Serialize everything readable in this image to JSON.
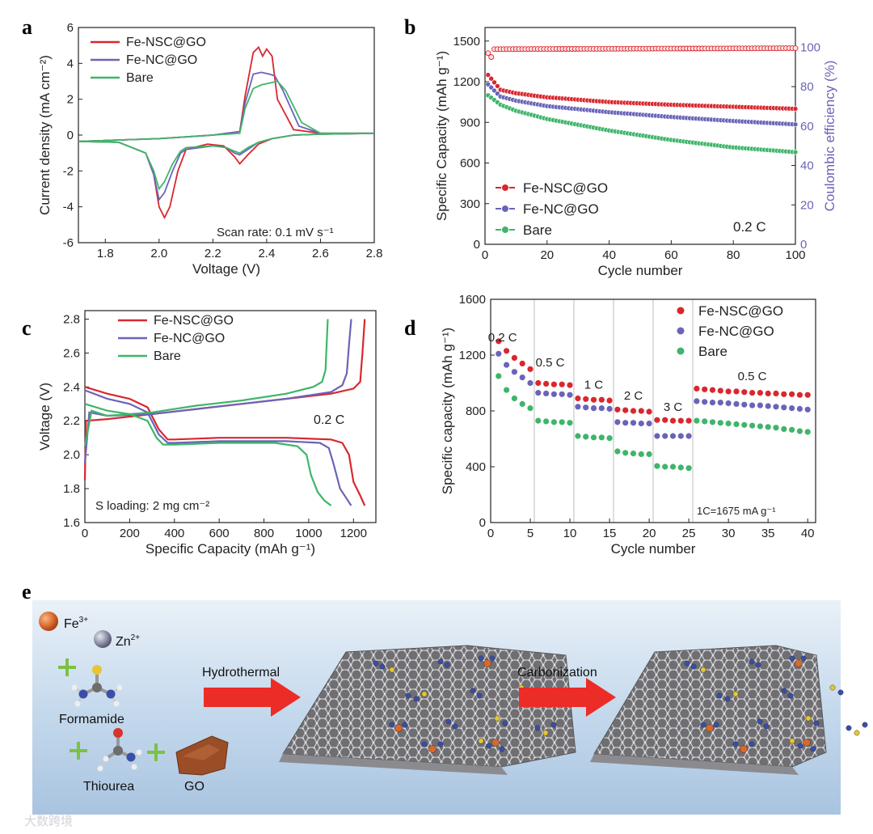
{
  "colors": {
    "nsc": "#d9272e",
    "nc": "#6a64b8",
    "bare": "#3fb56a"
  },
  "chart_data": [
    {
      "id": "a",
      "type": "line",
      "letter": "a",
      "xlabel": "Voltage (V)",
      "ylabel": "Current density (mA cm⁻²)",
      "xlim": [
        1.7,
        2.8
      ],
      "ylim": [
        -6,
        6
      ],
      "xticks": [
        1.8,
        2.0,
        2.2,
        2.4,
        2.6,
        2.8
      ],
      "yticks": [
        -6,
        -4,
        -2,
        0,
        2,
        4,
        6
      ],
      "annotation": "Scan rate: 0.1 mV s⁻¹",
      "legend": [
        "Fe-NSC@GO",
        "Fe-NC@GO",
        "Bare"
      ],
      "series": [
        {
          "name": "Fe-NSC@GO",
          "color": "nsc",
          "x": [
            1.7,
            1.85,
            1.95,
            1.98,
            2.0,
            2.02,
            2.04,
            2.07,
            2.1,
            2.18,
            2.24,
            2.28,
            2.3,
            2.33,
            2.37,
            2.42,
            2.5,
            2.6,
            2.8,
            2.6,
            2.5,
            2.44,
            2.42,
            2.4,
            2.385,
            2.37,
            2.35,
            2.32,
            2.3,
            2.2,
            2.0,
            1.7
          ],
          "y": [
            -0.35,
            -0.4,
            -1.0,
            -2.2,
            -4.0,
            -4.6,
            -4.0,
            -2.0,
            -0.8,
            -0.5,
            -0.6,
            -1.2,
            -1.6,
            -1.1,
            -0.5,
            -0.2,
            0.0,
            0.05,
            0.1,
            0.1,
            0.3,
            2.0,
            4.4,
            4.8,
            4.4,
            4.9,
            4.6,
            2.2,
            0.2,
            0.0,
            -0.2,
            -0.35
          ]
        },
        {
          "name": "Fe-NC@GO",
          "color": "nc",
          "x": [
            1.7,
            1.85,
            1.95,
            1.98,
            2.0,
            2.02,
            2.05,
            2.08,
            2.1,
            2.2,
            2.25,
            2.28,
            2.3,
            2.33,
            2.37,
            2.42,
            2.5,
            2.6,
            2.8,
            2.6,
            2.52,
            2.46,
            2.43,
            2.41,
            2.38,
            2.35,
            2.32,
            2.3,
            2.2,
            2.0,
            1.7
          ],
          "y": [
            -0.35,
            -0.4,
            -1.0,
            -2.2,
            -3.6,
            -3.2,
            -2.0,
            -1.0,
            -0.8,
            -0.6,
            -0.7,
            -1.0,
            -1.1,
            -0.8,
            -0.4,
            -0.2,
            0.0,
            0.05,
            0.1,
            0.1,
            0.5,
            2.5,
            3.3,
            3.4,
            3.5,
            3.4,
            1.8,
            0.2,
            0.0,
            -0.2,
            -0.35
          ]
        },
        {
          "name": "Bare",
          "color": "bare",
          "x": [
            1.7,
            1.85,
            1.95,
            1.98,
            2.0,
            2.02,
            2.05,
            2.08,
            2.1,
            2.2,
            2.25,
            2.28,
            2.3,
            2.33,
            2.37,
            2.42,
            2.5,
            2.6,
            2.8,
            2.6,
            2.53,
            2.47,
            2.44,
            2.41,
            2.38,
            2.35,
            2.32,
            2.3,
            2.2,
            2.0,
            1.7
          ],
          "y": [
            -0.35,
            -0.4,
            -1.0,
            -2.0,
            -3.0,
            -2.6,
            -1.6,
            -0.9,
            -0.7,
            -0.6,
            -0.7,
            -0.9,
            -1.0,
            -0.7,
            -0.4,
            -0.2,
            0.0,
            0.05,
            0.1,
            0.1,
            0.7,
            2.5,
            3.0,
            2.9,
            2.8,
            2.6,
            1.5,
            0.1,
            0.0,
            -0.2,
            -0.35
          ]
        }
      ]
    },
    {
      "id": "b",
      "type": "scatter",
      "letter": "b",
      "xlabel": "Cycle number",
      "ylabel": "Specific Capacity (mAh g⁻¹)",
      "ylabel2": "Coulombic efficiency (%)",
      "xlim": [
        0,
        100
      ],
      "ylim": [
        0,
        1600
      ],
      "y2lim": [
        0,
        110
      ],
      "xticks": [
        0,
        20,
        40,
        60,
        80,
        100
      ],
      "yticks": [
        0,
        300,
        600,
        900,
        1200,
        1500
      ],
      "y2ticks": [
        0,
        20,
        40,
        60,
        80,
        100
      ],
      "annotation": "0.2 C",
      "legend": [
        "Fe-NSC@GO",
        "Fe-NC@GO",
        "Bare"
      ],
      "capacity": [
        {
          "name": "Fe-NSC@GO",
          "color": "nsc",
          "start": 1250,
          "x": [
            1,
            5,
            10,
            20,
            40,
            60,
            80,
            100
          ],
          "y": [
            1250,
            1140,
            1115,
            1085,
            1050,
            1030,
            1015,
            1000
          ]
        },
        {
          "name": "Fe-NC@GO",
          "color": "nc",
          "start": 1180,
          "x": [
            1,
            5,
            10,
            20,
            40,
            60,
            80,
            100
          ],
          "y": [
            1180,
            1090,
            1060,
            1020,
            975,
            940,
            910,
            885
          ]
        },
        {
          "name": "Bare",
          "color": "bare",
          "start": 1100,
          "x": [
            1,
            5,
            10,
            20,
            40,
            60,
            80,
            100
          ],
          "y": [
            1100,
            1030,
            985,
            925,
            840,
            770,
            715,
            680
          ]
        }
      ],
      "efficiency": {
        "color": "nsc",
        "x": [
          1,
          2,
          3,
          100
        ],
        "y": [
          97,
          95,
          99,
          99.5
        ]
      }
    },
    {
      "id": "c",
      "type": "line",
      "letter": "c",
      "xlabel": "Specific Capacity (mAh g⁻¹)",
      "ylabel": "Voltage (V)",
      "xlim": [
        0,
        1300
      ],
      "ylim": [
        1.6,
        2.85
      ],
      "xticks": [
        0,
        200,
        400,
        600,
        800,
        1000,
        1200
      ],
      "yticks": [
        1.6,
        1.8,
        2.0,
        2.2,
        2.4,
        2.6,
        2.8
      ],
      "annotation": "0.2 C",
      "annotation2": "S loading: 2 mg cm⁻²",
      "legend": [
        "Fe-NSC@GO",
        "Fe-NC@GO",
        "Bare"
      ],
      "series": [
        {
          "name": "Fe-NSC@GO",
          "color": "nsc",
          "discharge": {
            "x": [
              0,
              100,
              200,
              280,
              330,
              370,
              400,
              600,
              900,
              1100,
              1150,
              1180,
              1200,
              1230,
              1250
            ],
            "y": [
              2.4,
              2.36,
              2.33,
              2.28,
              2.15,
              2.09,
              2.09,
              2.1,
              2.1,
              2.09,
              2.07,
              2.0,
              1.84,
              1.76,
              1.7
            ]
          },
          "charge": {
            "x": [
              0,
              5,
              100,
              300,
              500,
              700,
              900,
              1100,
              1200,
              1230,
              1240,
              1250
            ],
            "y": [
              1.85,
              2.2,
              2.21,
              2.24,
              2.27,
              2.3,
              2.33,
              2.36,
              2.39,
              2.43,
              2.6,
              2.8
            ]
          }
        },
        {
          "name": "Fe-NC@GO",
          "color": "nc",
          "discharge": {
            "x": [
              0,
              100,
              200,
              280,
              330,
              370,
              400,
              600,
              900,
              1050,
              1090,
              1110,
              1140,
              1170,
              1190
            ],
            "y": [
              2.38,
              2.33,
              2.3,
              2.25,
              2.12,
              2.07,
              2.07,
              2.08,
              2.08,
              2.07,
              2.04,
              1.95,
              1.8,
              1.74,
              1.7
            ]
          },
          "charge": {
            "x": [
              0,
              20,
              100,
              300,
              500,
              700,
              900,
              1100,
              1150,
              1170,
              1180,
              1190
            ],
            "y": [
              1.95,
              2.25,
              2.23,
              2.24,
              2.27,
              2.3,
              2.33,
              2.37,
              2.41,
              2.48,
              2.65,
              2.8
            ]
          }
        },
        {
          "name": "Bare",
          "color": "bare",
          "discharge": {
            "x": [
              0,
              100,
              200,
              280,
              320,
              350,
              400,
              600,
              850,
              950,
              990,
              1010,
              1040,
              1070,
              1100
            ],
            "y": [
              2.3,
              2.26,
              2.24,
              2.2,
              2.1,
              2.06,
              2.06,
              2.07,
              2.07,
              2.05,
              2.0,
              1.88,
              1.78,
              1.73,
              1.7
            ]
          },
          "charge": {
            "x": [
              0,
              30,
              100,
              300,
              500,
              700,
              900,
              1020,
              1060,
              1075,
              1080,
              1085
            ],
            "y": [
              2.05,
              2.26,
              2.23,
              2.25,
              2.29,
              2.32,
              2.36,
              2.4,
              2.43,
              2.5,
              2.65,
              2.8
            ]
          }
        }
      ]
    },
    {
      "id": "d",
      "type": "scatter",
      "letter": "d",
      "xlabel": "Cycle number",
      "ylabel": "Specific capacity (mAh g⁻¹)",
      "xlim": [
        0,
        41
      ],
      "ylim": [
        0,
        1600
      ],
      "xticks": [
        0,
        5,
        10,
        15,
        20,
        25,
        30,
        35,
        40
      ],
      "yticks": [
        0,
        400,
        800,
        1200,
        1600
      ],
      "dividers": [
        5.5,
        10.5,
        15.5,
        20.5,
        25.5
      ],
      "rate_labels": [
        {
          "text": "0.2 C",
          "x": 1.5,
          "y": 1300
        },
        {
          "text": "0.5 C",
          "x": 7.5,
          "y": 1120
        },
        {
          "text": "1 C",
          "x": 13,
          "y": 960
        },
        {
          "text": "2 C",
          "x": 18,
          "y": 880
        },
        {
          "text": "3 C",
          "x": 23,
          "y": 800
        },
        {
          "text": "0.5 C",
          "x": 33,
          "y": 1020
        }
      ],
      "annotation": "1C=1675 mA g⁻¹",
      "legend": [
        "Fe-NSC@GO",
        "Fe-NC@GO",
        "Bare"
      ],
      "series": [
        {
          "name": "Fe-NSC@GO",
          "color": "nsc",
          "y": [
            1300,
            1230,
            1180,
            1140,
            1100,
            1000,
            995,
            990,
            990,
            985,
            890,
            885,
            880,
            880,
            875,
            810,
            805,
            800,
            800,
            795,
            735,
            735,
            730,
            730,
            730,
            960,
            955,
            950,
            945,
            940,
            940,
            935,
            930,
            930,
            925,
            925,
            920,
            920,
            915,
            915
          ]
        },
        {
          "name": "Fe-NC@GO",
          "color": "nc",
          "y": [
            1210,
            1130,
            1080,
            1040,
            1000,
            930,
            925,
            920,
            920,
            915,
            830,
            825,
            820,
            820,
            815,
            720,
            715,
            715,
            710,
            710,
            620,
            620,
            620,
            620,
            620,
            870,
            865,
            860,
            860,
            855,
            850,
            845,
            840,
            840,
            835,
            830,
            825,
            820,
            815,
            810
          ]
        },
        {
          "name": "Bare",
          "color": "bare",
          "y": [
            1050,
            950,
            890,
            850,
            820,
            730,
            725,
            720,
            720,
            715,
            620,
            615,
            610,
            610,
            605,
            510,
            500,
            495,
            490,
            490,
            405,
            400,
            400,
            395,
            390,
            730,
            725,
            720,
            715,
            710,
            705,
            700,
            695,
            690,
            685,
            680,
            670,
            665,
            655,
            650
          ]
        }
      ]
    }
  ],
  "panel_e": {
    "letter": "e",
    "fe_label": "Fe",
    "fe_sup": "3+",
    "zn_label": "Zn",
    "zn_sup": "2+",
    "formamide": "Formamide",
    "thiourea": "Thiourea",
    "go": "GO",
    "step1": "Hydrothermal",
    "step2": "Carbonization",
    "watermark": "大数跨境"
  }
}
